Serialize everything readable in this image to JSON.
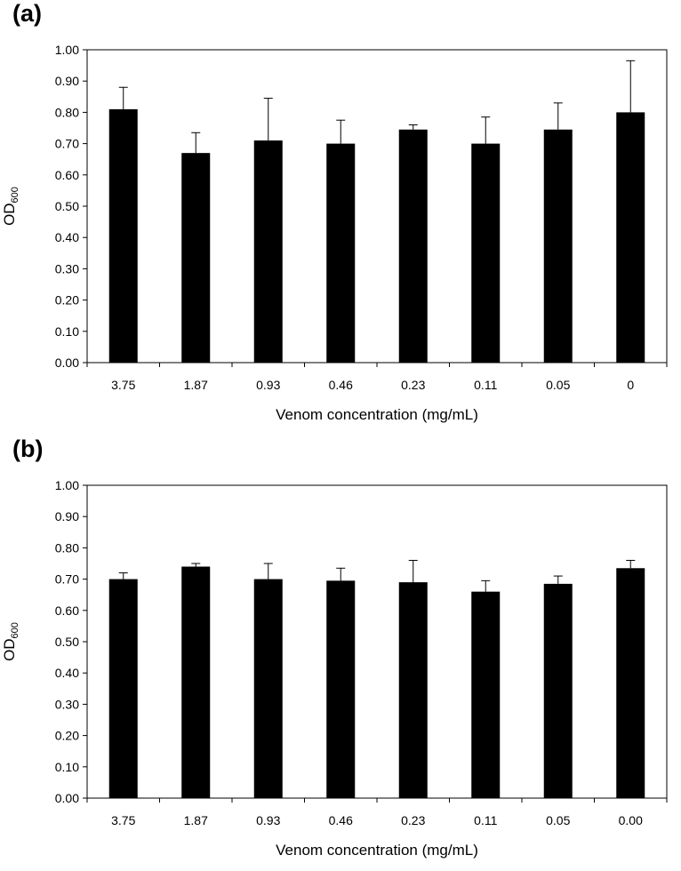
{
  "chart_data": [
    {
      "panel_label": "(a)",
      "type": "bar",
      "categories": [
        "3.75",
        "1.87",
        "0.93",
        "0.46",
        "0.23",
        "0.11",
        "0.05",
        "0"
      ],
      "values": [
        0.81,
        0.67,
        0.71,
        0.7,
        0.745,
        0.7,
        0.745,
        0.8
      ],
      "error_upper": [
        0.07,
        0.065,
        0.135,
        0.075,
        0.015,
        0.085,
        0.085,
        0.165
      ],
      "xlabel": "Venom concentration (mg/mL)",
      "ylabel_main": "OD",
      "ylabel_sub": "600",
      "ylim": [
        0,
        1.0
      ],
      "yticks": [
        "0.00",
        "0.10",
        "0.20",
        "0.30",
        "0.40",
        "0.50",
        "0.60",
        "0.70",
        "0.80",
        "0.90",
        "1.00"
      ],
      "bar_color": "#000000",
      "grid": false
    },
    {
      "panel_label": "(b)",
      "type": "bar",
      "categories": [
        "3.75",
        "1.87",
        "0.93",
        "0.46",
        "0.23",
        "0.11",
        "0.05",
        "0.00"
      ],
      "values": [
        0.7,
        0.74,
        0.7,
        0.695,
        0.69,
        0.66,
        0.685,
        0.735
      ],
      "error_upper": [
        0.02,
        0.01,
        0.05,
        0.04,
        0.07,
        0.035,
        0.025,
        0.025
      ],
      "xlabel": "Venom concentration (mg/mL)",
      "ylabel_main": "OD",
      "ylabel_sub": "600",
      "ylim": [
        0,
        1.0
      ],
      "yticks": [
        "0.00",
        "0.10",
        "0.20",
        "0.30",
        "0.40",
        "0.50",
        "0.60",
        "0.70",
        "0.80",
        "0.90",
        "1.00"
      ],
      "bar_color": "#000000",
      "grid": false
    }
  ]
}
